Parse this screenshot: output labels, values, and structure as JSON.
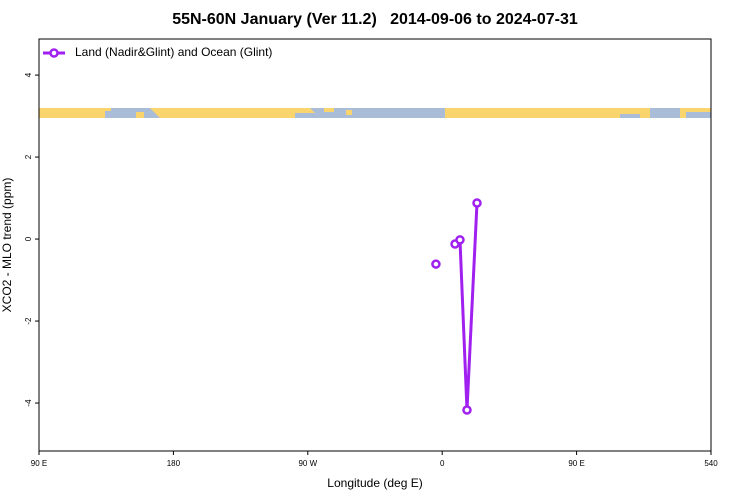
{
  "chart_data": {
    "type": "line",
    "title": "55N-60N January (Ver 11.2)   2014-09-06 to 2024-07-31",
    "x_label": "Longitude (deg E)",
    "y_label": "XCO2 - MLO trend (ppm)",
    "xlim": [
      90,
      540
    ],
    "xticks": [
      {
        "value": 90,
        "label": "90 E"
      },
      180,
      {
        "value": 270,
        "label": "90 W"
      },
      {
        "value": 360,
        "label": "0"
      },
      {
        "value": 450,
        "label": "90 E"
      },
      540
    ],
    "ylim": [
      -5.17,
      4.88
    ],
    "yticks": [
      -4,
      -2,
      0,
      2,
      4
    ],
    "legend": "top-left",
    "series": [
      {
        "name": "Land (Nadir&Glint) and Ocean (Glint)",
        "color": "#a020f0",
        "x": [
          355.8,
          null,
          368.6,
          371.9,
          376.6,
          383.3
        ],
        "values": [
          -0.61,
          null,
          -0.12,
          -0.02,
          -4.17,
          0.88
        ]
      }
    ]
  }
}
